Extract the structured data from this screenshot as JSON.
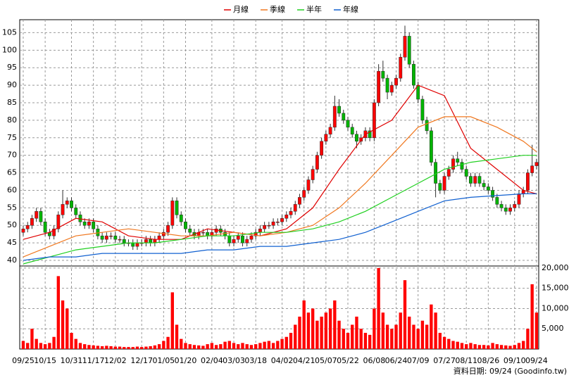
{
  "chart_data": [
    {
      "type": "candlestick",
      "up_color": "#ff0000",
      "down_color": "#00b400",
      "edge_color": "#303030",
      "xlim": [
        -0.8,
        117.5
      ],
      "ylim": [
        38.4,
        108.7
      ],
      "yticks": [
        40,
        45,
        50,
        55,
        60,
        65,
        70,
        75,
        80,
        85,
        90,
        95,
        100,
        105
      ],
      "grid": true,
      "open": [
        48,
        49,
        50,
        52,
        54,
        51,
        48,
        47,
        49,
        53,
        56,
        57,
        55,
        53,
        51,
        50,
        51,
        49,
        47,
        46,
        47,
        47,
        46,
        46,
        45,
        45,
        44,
        45,
        45,
        46,
        45,
        46,
        47,
        48,
        50,
        57,
        53,
        51,
        49,
        48,
        47,
        48,
        48,
        47,
        48,
        49,
        48,
        47,
        45,
        46,
        47,
        45,
        46,
        47,
        48,
        49,
        50,
        50,
        51,
        51,
        52,
        53,
        54,
        56,
        58,
        60,
        63,
        66,
        70,
        74,
        76,
        78,
        84,
        82,
        80,
        78,
        76,
        74,
        75,
        77,
        75,
        85,
        94,
        92,
        88,
        90,
        92,
        98,
        104,
        96,
        90,
        86,
        80,
        77,
        68,
        62,
        60,
        64,
        66,
        69,
        68,
        66,
        64,
        62,
        64,
        62,
        61,
        60,
        58,
        56,
        55,
        54,
        55,
        56,
        59,
        60,
        65,
        67
      ],
      "high": [
        50,
        51,
        53,
        55,
        55,
        52,
        49,
        50,
        54,
        60,
        58,
        58,
        56,
        54,
        52,
        52,
        52,
        50,
        48,
        48,
        48,
        48,
        47,
        47,
        46,
        46,
        46,
        46,
        47,
        47,
        47,
        48,
        49,
        51,
        58,
        58,
        54,
        52,
        50,
        49,
        49,
        49,
        49,
        49,
        50,
        50,
        49,
        48,
        47,
        48,
        48,
        47,
        48,
        49,
        50,
        51,
        51,
        52,
        52,
        53,
        54,
        55,
        57,
        59,
        61,
        64,
        67,
        71,
        75,
        77,
        79,
        87,
        86,
        83,
        81,
        79,
        77,
        76,
        78,
        78,
        86,
        96,
        97,
        93,
        91,
        93,
        99,
        107,
        105,
        97,
        91,
        87,
        81,
        78,
        69,
        63,
        65,
        67,
        70,
        71,
        69,
        67,
        65,
        65,
        65,
        63,
        62,
        61,
        59,
        57,
        56,
        56,
        57,
        60,
        61,
        66,
        73,
        69
      ],
      "low": [
        47,
        48,
        49,
        51,
        50,
        47,
        46,
        46,
        48,
        52,
        55,
        54,
        52,
        50,
        49,
        49,
        48,
        46,
        45,
        45,
        46,
        45,
        45,
        44,
        44,
        43,
        43,
        44,
        44,
        44,
        44,
        45,
        46,
        47,
        49,
        52,
        50,
        48,
        47,
        46,
        46,
        47,
        46,
        46,
        47,
        47,
        46,
        44,
        44,
        45,
        44,
        44,
        45,
        46,
        47,
        48,
        49,
        49,
        50,
        50,
        51,
        52,
        53,
        55,
        57,
        59,
        62,
        65,
        69,
        73,
        75,
        77,
        81,
        79,
        77,
        75,
        72,
        73,
        74,
        74,
        74,
        84,
        91,
        86,
        87,
        89,
        91,
        97,
        95,
        89,
        85,
        79,
        76,
        67,
        58,
        59,
        59,
        63,
        65,
        67,
        65,
        63,
        61,
        61,
        61,
        60,
        59,
        57,
        55,
        54,
        53,
        53,
        54,
        55,
        58,
        59,
        64,
        66
      ],
      "close": [
        49,
        50,
        52,
        54,
        51,
        48,
        47,
        49,
        53,
        56,
        57,
        55,
        53,
        51,
        50,
        51,
        49,
        47,
        46,
        47,
        47,
        46,
        46,
        45,
        45,
        44,
        45,
        45,
        46,
        45,
        46,
        47,
        48,
        50,
        57,
        53,
        51,
        49,
        48,
        47,
        48,
        48,
        47,
        48,
        49,
        48,
        47,
        45,
        46,
        47,
        45,
        46,
        47,
        48,
        49,
        50,
        50,
        51,
        51,
        52,
        53,
        54,
        56,
        58,
        60,
        63,
        66,
        70,
        74,
        76,
        78,
        84,
        82,
        80,
        78,
        76,
        74,
        75,
        77,
        75,
        85,
        94,
        92,
        88,
        90,
        92,
        98,
        104,
        96,
        90,
        86,
        80,
        77,
        68,
        62,
        60,
        64,
        66,
        69,
        68,
        66,
        64,
        62,
        64,
        62,
        61,
        60,
        58,
        56,
        55,
        54,
        55,
        56,
        59,
        60,
        65,
        67,
        68
      ],
      "series": [
        {
          "name": "月線",
          "color": "#e00000",
          "x": [
            0,
            6,
            12,
            18,
            24,
            30,
            36,
            42,
            48,
            54,
            60,
            66,
            72,
            78,
            84,
            90,
            96,
            102,
            108,
            114,
            117
          ],
          "values": [
            46,
            48,
            52,
            51,
            47,
            46,
            46,
            49,
            48,
            47,
            49,
            55,
            66,
            76,
            80,
            90,
            87,
            72,
            66,
            60,
            59
          ]
        },
        {
          "name": "季線",
          "color": "#f07820",
          "x": [
            0,
            6,
            12,
            18,
            24,
            30,
            36,
            42,
            48,
            54,
            60,
            66,
            72,
            78,
            84,
            90,
            96,
            102,
            108,
            114,
            117
          ],
          "values": [
            41,
            44,
            47,
            48,
            49,
            48,
            47,
            47,
            48,
            47,
            48,
            50,
            55,
            62,
            70,
            78,
            81,
            81,
            78,
            74,
            71
          ]
        },
        {
          "name": "半年",
          "color": "#20d020",
          "x": [
            0,
            6,
            12,
            18,
            24,
            30,
            36,
            42,
            48,
            54,
            60,
            66,
            72,
            78,
            84,
            90,
            96,
            102,
            108,
            114,
            117
          ],
          "values": [
            39,
            41,
            43,
            44,
            45,
            45,
            46,
            47,
            47,
            48,
            48,
            49,
            51,
            54,
            58,
            62,
            66,
            68,
            69,
            70,
            70
          ]
        },
        {
          "name": "年線",
          "color": "#1060d0",
          "x": [
            0,
            6,
            12,
            18,
            24,
            30,
            36,
            42,
            48,
            54,
            60,
            66,
            72,
            78,
            84,
            90,
            96,
            102,
            108,
            114,
            117
          ],
          "values": [
            40,
            41,
            41,
            42,
            42,
            42,
            42,
            43,
            43,
            44,
            44,
            45,
            46,
            48,
            51,
            54,
            57,
            58,
            58.5,
            59,
            59
          ]
        }
      ],
      "source": "資料日期: 09/24  (Goodinfo.tw)"
    },
    {
      "type": "bar",
      "color": "#ff0000",
      "ylim": [
        0,
        20500
      ],
      "yticks": [
        {
          "value": 5000,
          "label": "5,000"
        },
        {
          "value": 10000,
          "label": "10,000"
        },
        {
          "value": 15000,
          "label": "15,000"
        },
        {
          "value": 20000,
          "label": "20,000"
        }
      ],
      "xticks": [
        {
          "value": 0,
          "label": "09/25"
        },
        {
          "value": 5,
          "label": "10/15"
        },
        {
          "value": 11,
          "label": "10/31"
        },
        {
          "value": 16,
          "label": "11/17"
        },
        {
          "value": 21,
          "label": "12/02"
        },
        {
          "value": 27,
          "label": "12/17"
        },
        {
          "value": 32,
          "label": "01/05"
        },
        {
          "value": 37,
          "label": "01/20"
        },
        {
          "value": 43,
          "label": "02/04"
        },
        {
          "value": 48,
          "label": "03/03"
        },
        {
          "value": 53,
          "label": "03/18"
        },
        {
          "value": 59,
          "label": "04/02"
        },
        {
          "value": 64,
          "label": "04/21"
        },
        {
          "value": 69,
          "label": "05/07"
        },
        {
          "value": 74,
          "label": "05/22"
        },
        {
          "value": 80,
          "label": "06/08"
        },
        {
          "value": 85,
          "label": "06/24"
        },
        {
          "value": 90,
          "label": "07/09"
        },
        {
          "value": 96,
          "label": "07/27"
        },
        {
          "value": 101,
          "label": "08/11"
        },
        {
          "value": 106,
          "label": "08/26"
        },
        {
          "value": 112,
          "label": "09/10"
        },
        {
          "value": 117,
          "label": "09/24"
        }
      ],
      "values": [
        2000,
        1500,
        5000,
        2500,
        1500,
        1200,
        1500,
        3000,
        18000,
        12000,
        10000,
        4000,
        2500,
        1500,
        1200,
        1000,
        900,
        800,
        700,
        800,
        700,
        600,
        600,
        500,
        500,
        500,
        600,
        500,
        600,
        700,
        900,
        1200,
        2000,
        3000,
        14000,
        6000,
        2500,
        1500,
        1200,
        1000,
        900,
        800,
        1200,
        1500,
        1000,
        1200,
        1800,
        2000,
        1500,
        1200,
        1500,
        1200,
        1000,
        1200,
        1500,
        1800,
        2000,
        1500,
        2000,
        2500,
        3000,
        4000,
        6000,
        8000,
        12000,
        9000,
        10000,
        7000,
        8000,
        9000,
        10000,
        12000,
        7000,
        5000,
        4000,
        6000,
        8000,
        5000,
        4000,
        3500,
        10000,
        20000,
        9000,
        6000,
        5000,
        6000,
        9000,
        17000,
        8000,
        6000,
        5000,
        7000,
        6000,
        11000,
        9000,
        4000,
        3000,
        2500,
        2000,
        1800,
        1500,
        1200,
        1500,
        1200,
        1000,
        1000,
        900,
        1500,
        1200,
        1000,
        900,
        800,
        1000,
        1500,
        2000,
        5000,
        16000,
        9000
      ]
    }
  ]
}
